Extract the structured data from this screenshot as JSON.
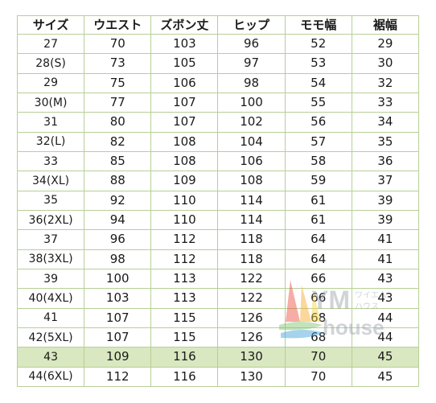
{
  "table": {
    "headers": [
      "サイズ",
      "ウエスト",
      "ズボン丈",
      "ヒップ",
      "モモ幅",
      "裾幅"
    ],
    "rows": [
      [
        "27",
        "70",
        "103",
        "96",
        "52",
        "29"
      ],
      [
        "28(S)",
        "73",
        "105",
        "97",
        "53",
        "30"
      ],
      [
        "29",
        "75",
        "106",
        "98",
        "54",
        "32"
      ],
      [
        "30(M)",
        "77",
        "107",
        "100",
        "55",
        "33"
      ],
      [
        "31",
        "80",
        "107",
        "102",
        "56",
        "34"
      ],
      [
        "32(L)",
        "82",
        "108",
        "104",
        "57",
        "35"
      ],
      [
        "33",
        "85",
        "108",
        "106",
        "58",
        "36"
      ],
      [
        "34(XL)",
        "88",
        "109",
        "108",
        "59",
        "37"
      ],
      [
        "35",
        "92",
        "110",
        "114",
        "61",
        "39"
      ],
      [
        "36(2XL)",
        "94",
        "110",
        "114",
        "61",
        "39"
      ],
      [
        "37",
        "96",
        "112",
        "118",
        "64",
        "41"
      ],
      [
        "38(3XL)",
        "98",
        "112",
        "118",
        "64",
        "41"
      ],
      [
        "39",
        "100",
        "113",
        "122",
        "66",
        "43"
      ],
      [
        "40(4XL)",
        "103",
        "113",
        "122",
        "66",
        "43"
      ],
      [
        "41",
        "107",
        "115",
        "126",
        "68",
        "44"
      ],
      [
        "42(5XL)",
        "107",
        "115",
        "126",
        "68",
        "44"
      ],
      [
        "43",
        "109",
        "116",
        "130",
        "70",
        "45"
      ],
      [
        "44(6XL)",
        "112",
        "116",
        "130",
        "70",
        "45"
      ]
    ],
    "highlighted_row": "43",
    "border_color": "#b7cf97",
    "highlight_color": "#d9e8c0"
  },
  "watermark": {
    "text_main": "YM",
    "text_katakana": "ワイエム",
    "text_sub1": "ハウス",
    "text_sub2": "house",
    "colors": [
      "#e94b3c",
      "#f7a823",
      "#f5d33b",
      "#7cc36b",
      "#3aa0d8"
    ]
  }
}
